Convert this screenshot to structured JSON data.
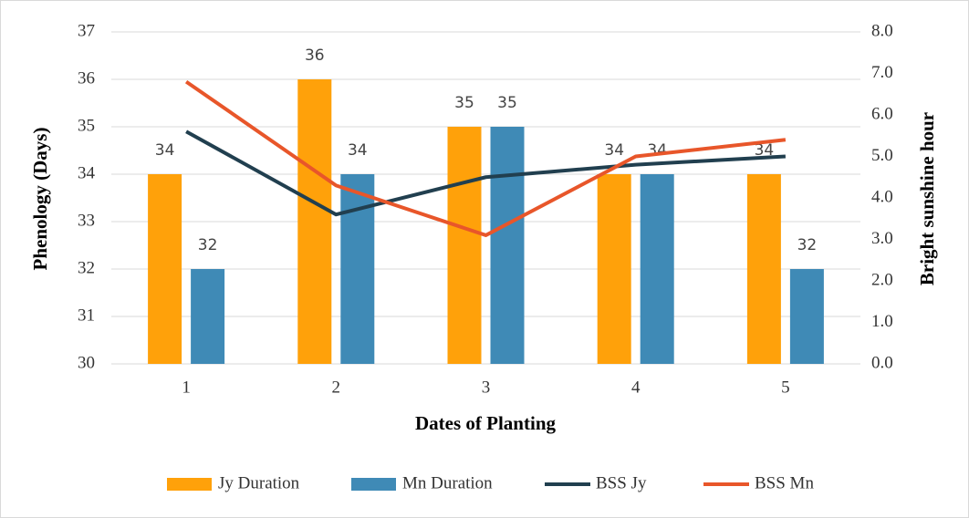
{
  "chart_data": {
    "type": "bar",
    "categories": [
      "1",
      "2",
      "3",
      "4",
      "5"
    ],
    "x_label": "Dates of Planting",
    "y_label": "Phenology (Days)",
    "y2_label": "Bright sunshine hour",
    "series": [
      {
        "name": "Jy Duration",
        "type": "bar",
        "color": "#ffa10a",
        "values": [
          34,
          36,
          35,
          34,
          34
        ]
      },
      {
        "name": "Mn Duration",
        "type": "bar",
        "color": "#3f8ab6",
        "values": [
          32,
          34,
          35,
          34,
          32
        ]
      },
      {
        "name": "BSS Jy",
        "type": "line",
        "axis": "y2",
        "color": "#213f4f",
        "values": [
          5.6,
          3.6,
          4.5,
          4.8,
          5.0
        ]
      },
      {
        "name": "BSS Mn",
        "type": "line",
        "axis": "y2",
        "color": "#e8562a",
        "values": [
          6.8,
          4.3,
          3.1,
          5.0,
          5.4
        ]
      }
    ],
    "ylim": [
      30,
      37
    ],
    "yticks": [
      30,
      31,
      32,
      33,
      34,
      35,
      36,
      37
    ],
    "y2lim": [
      0,
      8
    ],
    "y2ticks": [
      {
        "value": 0,
        "label": "0.0"
      },
      {
        "value": 1,
        "label": "1.0"
      },
      {
        "value": 2,
        "label": "2.0"
      },
      {
        "value": 3,
        "label": "3.0"
      },
      {
        "value": 4,
        "label": "4.0"
      },
      {
        "value": 5,
        "label": "5.0"
      },
      {
        "value": 6,
        "label": "6.0"
      },
      {
        "value": 7,
        "label": "7.0"
      },
      {
        "value": 8,
        "label": "8.0"
      }
    ],
    "grid": true,
    "legend": "bottom"
  }
}
